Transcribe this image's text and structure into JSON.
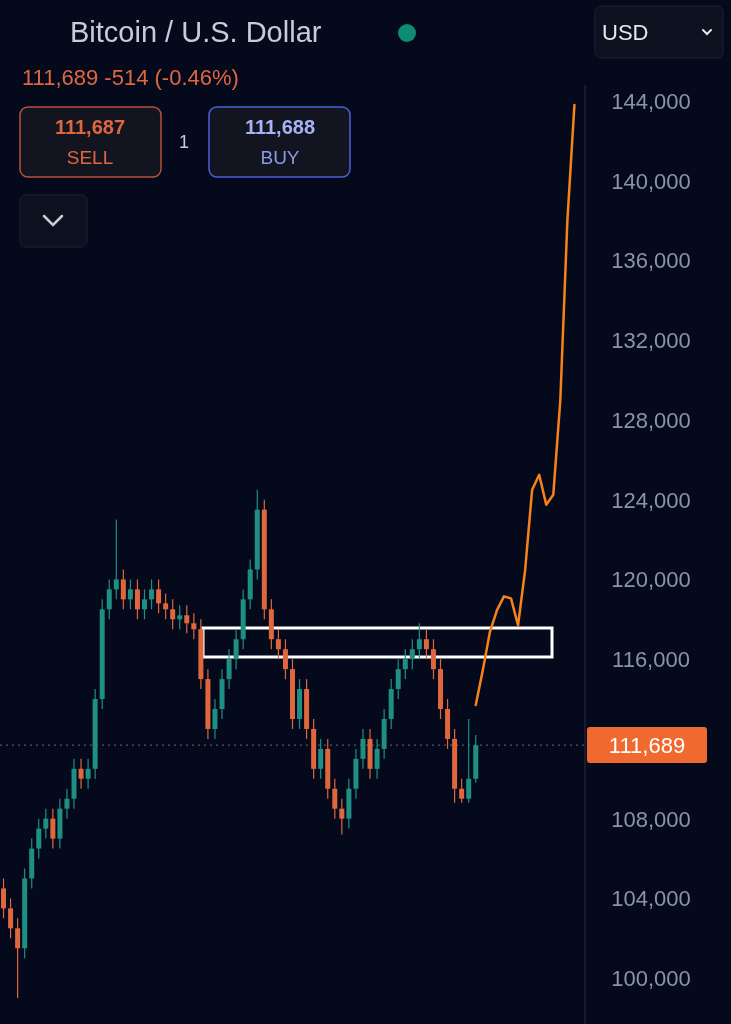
{
  "chart_data": {
    "type": "candlestick",
    "title": "Bitcoin / U.S. Dollar",
    "subtitle": "111,689  -514 (-0.46%)",
    "annotations": [
      "111,687",
      "SELL",
      "1",
      "111,688",
      "BUY",
      "USD"
    ],
    "categories": [
      null,
      null,
      null,
      null,
      null,
      null,
      null,
      null,
      null,
      null,
      null,
      null,
      null,
      null,
      null,
      null,
      null,
      null,
      null,
      null,
      null,
      null,
      null,
      null,
      null,
      null,
      null,
      null,
      null,
      null,
      null,
      null,
      null,
      null,
      null,
      null,
      null,
      null,
      null,
      null,
      null,
      null,
      null,
      null,
      null,
      null,
      null,
      null,
      null,
      null,
      null,
      null,
      null,
      null,
      null,
      null,
      null,
      null,
      null,
      null,
      null,
      null,
      null,
      null,
      null,
      null,
      null,
      null,
      null,
      null,
      null,
      null,
      null,
      null,
      null,
      null,
      null,
      null,
      null,
      null,
      null,
      null,
      null
    ],
    "ohlc": [
      [
        104500,
        105000,
        103000,
        103500
      ],
      [
        103500,
        104000,
        102000,
        102500
      ],
      [
        102500,
        103000,
        99000,
        101500
      ],
      [
        101500,
        105500,
        101000,
        105000
      ],
      [
        105000,
        107000,
        104500,
        106500
      ],
      [
        106500,
        108000,
        106000,
        107500
      ],
      [
        107500,
        108500,
        107000,
        108000
      ],
      [
        108000,
        108500,
        106500,
        107000
      ],
      [
        107000,
        109000,
        106500,
        108500
      ],
      [
        108500,
        109500,
        108000,
        109000
      ],
      [
        109000,
        111000,
        108500,
        110500
      ],
      [
        110500,
        111000,
        109500,
        110000
      ],
      [
        110000,
        111000,
        109500,
        110500
      ],
      [
        110500,
        114500,
        110000,
        114000
      ],
      [
        114000,
        119000,
        113500,
        118500
      ],
      [
        118500,
        120000,
        118000,
        119500
      ],
      [
        119500,
        123000,
        119000,
        120000
      ],
      [
        120000,
        120500,
        118500,
        119000
      ],
      [
        119000,
        120000,
        118500,
        119500
      ],
      [
        119500,
        120000,
        118000,
        118500
      ],
      [
        118500,
        119500,
        118000,
        119000
      ],
      [
        119000,
        120000,
        118500,
        119500
      ],
      [
        119500,
        120000,
        118300,
        118800
      ],
      [
        118800,
        119300,
        118000,
        118500
      ],
      [
        118500,
        119000,
        117500,
        118000
      ],
      [
        118000,
        118700,
        117500,
        118200
      ],
      [
        118200,
        118700,
        117300,
        117800
      ],
      [
        117800,
        118300,
        117000,
        117500
      ],
      [
        117500,
        118000,
        114500,
        115000
      ],
      [
        115000,
        115500,
        112000,
        112500
      ],
      [
        112500,
        114000,
        112000,
        113500
      ],
      [
        113500,
        115500,
        113000,
        115000
      ],
      [
        115000,
        116500,
        114500,
        116000
      ],
      [
        116000,
        117500,
        115500,
        117000
      ],
      [
        117000,
        119500,
        116500,
        119000
      ],
      [
        119000,
        121000,
        118500,
        120500
      ],
      [
        120500,
        124500,
        120000,
        123500
      ],
      [
        123500,
        124000,
        118000,
        118500
      ],
      [
        118500,
        119000,
        116500,
        117000
      ],
      [
        117000,
        117500,
        116000,
        116500
      ],
      [
        116500,
        117000,
        115000,
        115500
      ],
      [
        115500,
        116000,
        112500,
        113000
      ],
      [
        113000,
        115000,
        112500,
        114500
      ],
      [
        114500,
        115000,
        112000,
        112500
      ],
      [
        112500,
        113000,
        110000,
        110500
      ],
      [
        110500,
        112000,
        110000,
        111500
      ],
      [
        111500,
        112000,
        109000,
        109500
      ],
      [
        109500,
        110000,
        108000,
        108500
      ],
      [
        108500,
        109000,
        107200,
        108000
      ],
      [
        108000,
        110000,
        107500,
        109500
      ],
      [
        109500,
        111500,
        109000,
        111000
      ],
      [
        111000,
        112500,
        110500,
        112000
      ],
      [
        112000,
        112500,
        110000,
        110500
      ],
      [
        110500,
        112000,
        110000,
        111500
      ],
      [
        111500,
        113500,
        111000,
        113000
      ],
      [
        113000,
        115000,
        112500,
        114500
      ],
      [
        114500,
        116000,
        114000,
        115500
      ],
      [
        115500,
        116500,
        115000,
        116000
      ],
      [
        116000,
        117000,
        115500,
        116500
      ],
      [
        116500,
        117800,
        116000,
        117000
      ],
      [
        117000,
        117500,
        116000,
        116500
      ],
      [
        116500,
        117000,
        115000,
        115500
      ],
      [
        115500,
        116000,
        113000,
        113500
      ],
      [
        113500,
        114000,
        111500,
        112000
      ],
      [
        112000,
        112500,
        108800,
        109500
      ],
      [
        109500,
        110000,
        108800,
        109000
      ],
      [
        109000,
        113000,
        108800,
        110000
      ],
      [
        110000,
        112200,
        109800,
        111689
      ],
      null,
      null,
      null,
      null,
      null,
      null,
      null,
      null,
      null,
      null,
      null,
      null,
      null,
      null,
      null
    ],
    "series": [
      {
        "type": "line",
        "color": "#f7821b",
        "values": [
          null,
          null,
          null,
          null,
          null,
          null,
          null,
          null,
          null,
          null,
          null,
          null,
          null,
          null,
          null,
          null,
          null,
          null,
          null,
          null,
          null,
          null,
          null,
          null,
          null,
          null,
          null,
          null,
          null,
          null,
          null,
          null,
          null,
          null,
          null,
          null,
          null,
          null,
          null,
          null,
          null,
          null,
          null,
          null,
          null,
          null,
          null,
          null,
          null,
          null,
          null,
          null,
          null,
          null,
          null,
          null,
          null,
          null,
          null,
          null,
          null,
          null,
          null,
          null,
          null,
          null,
          null,
          113700,
          115450,
          117350,
          118450,
          119150,
          119050,
          117700,
          120450,
          124500,
          125250,
          123750,
          124250,
          129000,
          138000,
          143800,
          null
        ]
      }
    ],
    "ylim": [
      97700,
      144800
    ],
    "yticks": [
      {
        "value": 100000,
        "label": "100,000"
      },
      {
        "value": 104000,
        "label": "104,000"
      },
      {
        "value": 108000,
        "label": "108,000"
      },
      {
        "value": 116000,
        "label": "116,000"
      },
      {
        "value": 120000,
        "label": "120,000"
      },
      {
        "value": 124000,
        "label": "124,000"
      },
      {
        "value": 128000,
        "label": "128,000"
      },
      {
        "value": 132000,
        "label": "132,000"
      },
      {
        "value": 136000,
        "label": "136,000"
      },
      {
        "value": 140000,
        "label": "140,000"
      },
      {
        "value": 144000,
        "label": "144,000"
      }
    ],
    "tick_labels": "y",
    "ref_lines": [
      {
        "axis": "y",
        "value": 111689,
        "label": "111,689",
        "color": "#6b6f7d",
        "line_style": "dotted"
      }
    ]
  }
}
